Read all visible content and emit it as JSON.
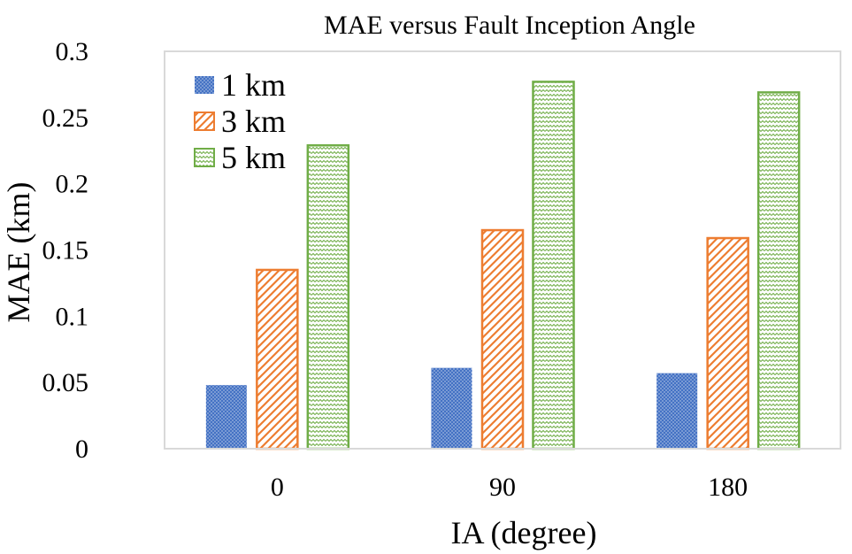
{
  "chart_data": {
    "type": "bar",
    "title": "MAE versus Fault Inception Angle",
    "xlabel": "IA (degree)",
    "ylabel": "MAE (km)",
    "categories": [
      "0",
      "90",
      "180"
    ],
    "ylim": [
      0,
      0.3
    ],
    "yticks": [
      "0",
      "0.05",
      "0.1",
      "0.15",
      "0.2",
      "0.25",
      "0.3"
    ],
    "grid": false,
    "legend_position": "top-left",
    "series": [
      {
        "name": "1 km",
        "values": [
          0.048,
          0.061,
          0.057
        ],
        "color": "#4472c4",
        "pattern": "dots"
      },
      {
        "name": "3 km",
        "values": [
          0.135,
          0.165,
          0.159
        ],
        "color": "#ed7d31",
        "pattern": "diagonal-hatch"
      },
      {
        "name": "5 km",
        "values": [
          0.229,
          0.277,
          0.269
        ],
        "color": "#70ad47",
        "pattern": "zigzag"
      }
    ]
  }
}
